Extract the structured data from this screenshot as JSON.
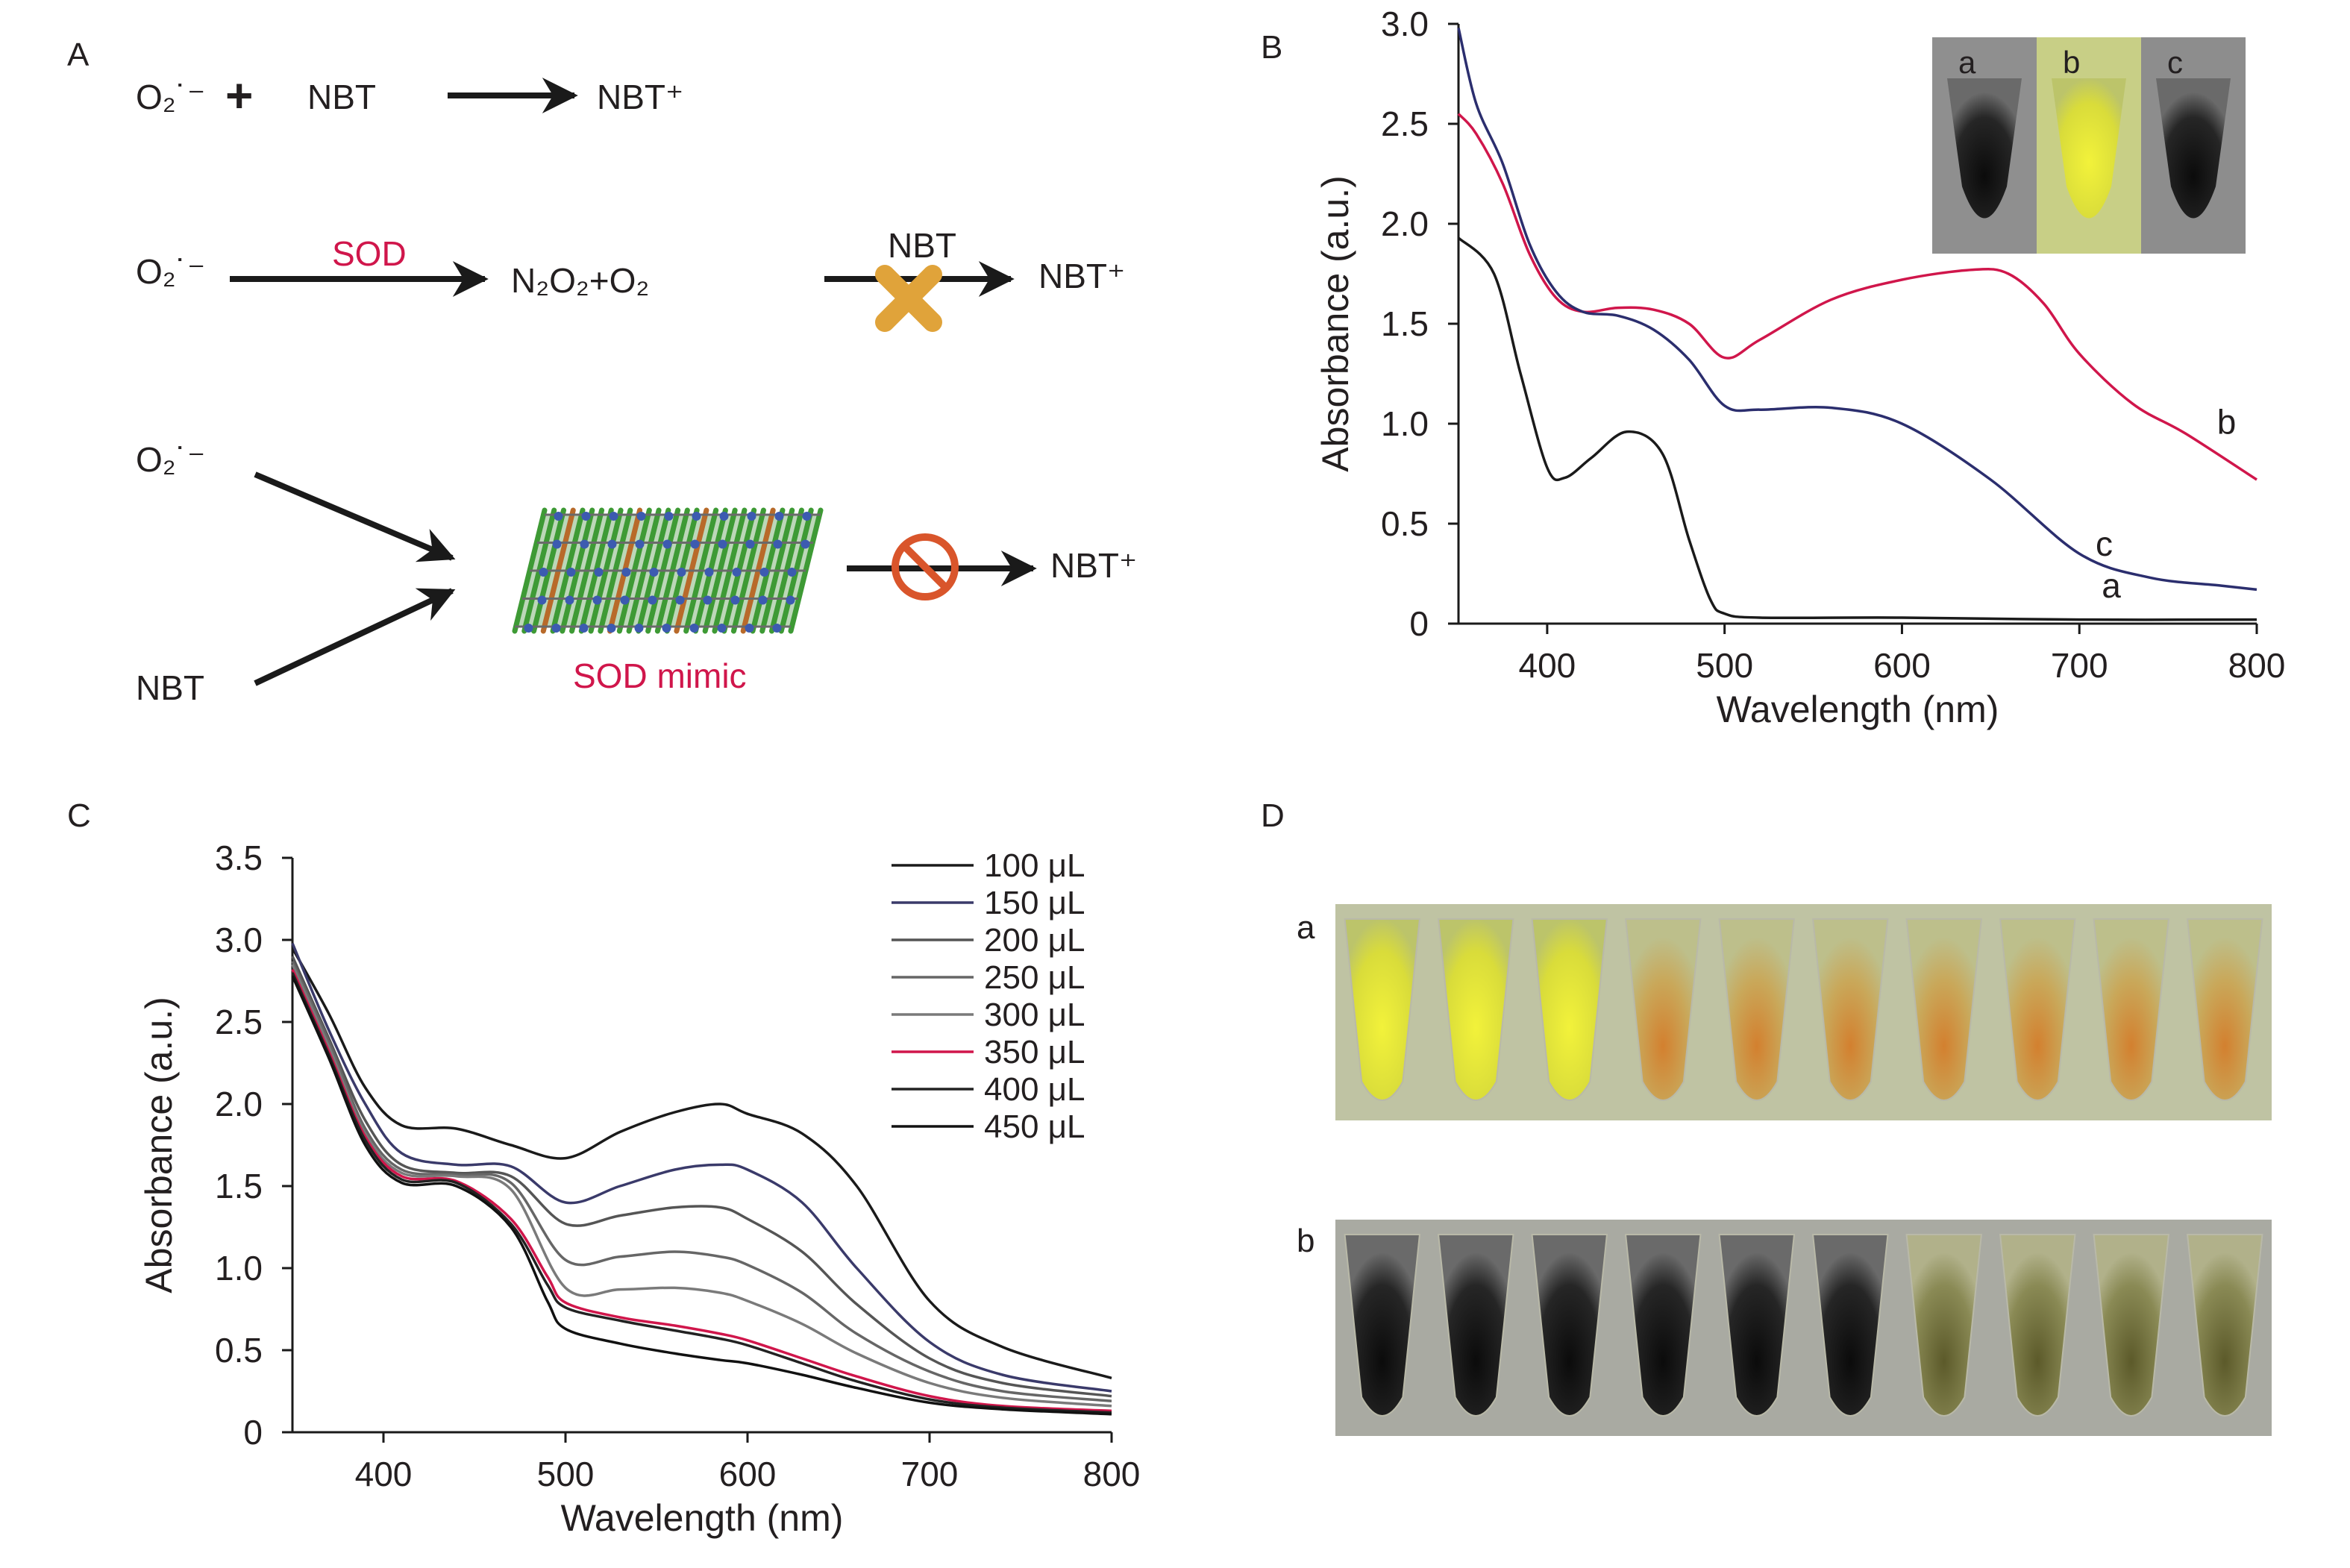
{
  "panel_labels": {
    "A": "A",
    "B": "B",
    "C": "C",
    "D": "D"
  },
  "scheme": {
    "row1": {
      "superoxide": "O₂˙⁻",
      "plus": "+",
      "reagent": "NBT",
      "product": "NBT⁺"
    },
    "row2": {
      "superoxide": "O₂˙⁻",
      "enzyme": "SOD",
      "products": "N₂O₂+O₂",
      "reagent": "NBT",
      "product": "NBT⁺"
    },
    "row3": {
      "superoxide": "O₂˙⁻",
      "reagent": "NBT",
      "mimic": "SOD mimic",
      "product": "NBT⁺"
    },
    "colors": {
      "text": "#231f20",
      "accent": "#d0164b",
      "cross": "#e0a33a",
      "prohibit": "#d9552b"
    }
  },
  "photos": {
    "inset_labels": [
      "a",
      "b",
      "c"
    ],
    "row_labels": [
      "a",
      "b"
    ],
    "tubes_per_row": 10
  },
  "chart_data": [
    {
      "panel": "B",
      "type": "line",
      "xlabel": "Wavelength (nm)",
      "ylabel": "Absorbance (a.u.)",
      "xlim": [
        350,
        800
      ],
      "ylim": [
        0,
        3.0
      ],
      "xticks": [
        400,
        500,
        600,
        700,
        800
      ],
      "yticks": [
        0,
        0.5,
        1.0,
        1.5,
        2.0,
        2.5,
        3.0
      ],
      "ytick_labels": [
        "0",
        "0.5",
        "1.0",
        "1.5",
        "2.0",
        "2.5",
        "3.0"
      ],
      "grid": false,
      "series": [
        {
          "name": "a",
          "color": "#1a1a1a",
          "x": [
            350,
            370,
            385,
            400,
            410,
            425,
            445,
            465,
            480,
            492,
            500,
            520,
            600,
            700,
            800
          ],
          "y": [
            1.93,
            1.75,
            1.25,
            0.78,
            0.73,
            0.83,
            0.96,
            0.85,
            0.42,
            0.12,
            0.05,
            0.03,
            0.03,
            0.02,
            0.02
          ]
        },
        {
          "name": "b",
          "color": "#d0164b",
          "x": [
            350,
            360,
            375,
            390,
            405,
            420,
            440,
            460,
            480,
            500,
            520,
            560,
            600,
            640,
            660,
            680,
            700,
            730,
            760,
            800
          ],
          "y": [
            2.55,
            2.45,
            2.2,
            1.85,
            1.63,
            1.56,
            1.58,
            1.57,
            1.5,
            1.33,
            1.42,
            1.62,
            1.72,
            1.77,
            1.75,
            1.6,
            1.35,
            1.1,
            0.95,
            0.72
          ]
        },
        {
          "name": "c",
          "color": "#2b2e6e",
          "x": [
            350,
            360,
            375,
            390,
            405,
            420,
            440,
            460,
            480,
            500,
            520,
            560,
            600,
            650,
            700,
            740,
            780,
            800
          ],
          "y": [
            2.98,
            2.6,
            2.3,
            1.9,
            1.66,
            1.56,
            1.54,
            1.47,
            1.32,
            1.09,
            1.07,
            1.08,
            1.0,
            0.72,
            0.35,
            0.23,
            0.19,
            0.17
          ]
        }
      ],
      "annotations": [
        {
          "text": "a",
          "x": 718,
          "y": 0.13
        },
        {
          "text": "b",
          "x": 783,
          "y": 0.95
        },
        {
          "text": "c",
          "x": 714,
          "y": 0.34
        }
      ]
    },
    {
      "panel": "C",
      "type": "line",
      "xlabel": "Wavelength (nm)",
      "ylabel": "Absorbance (a.u.)",
      "xlim": [
        350,
        800
      ],
      "ylim": [
        0,
        3.5
      ],
      "xticks": [
        400,
        500,
        600,
        700,
        800
      ],
      "yticks": [
        0,
        0.5,
        1.0,
        1.5,
        2.0,
        2.5,
        3.0,
        3.5
      ],
      "ytick_labels": [
        "0",
        "0.5",
        "1.0",
        "1.5",
        "2.0",
        "2.5",
        "3.0",
        "3.5"
      ],
      "grid": false,
      "legend_position": "top-right",
      "series": [
        {
          "name": "100 μL",
          "color": "#1a1a1a",
          "x": [
            350,
            370,
            390,
            410,
            440,
            470,
            500,
            530,
            560,
            585,
            600,
            630,
            660,
            700,
            740,
            800
          ],
          "y": [
            2.95,
            2.55,
            2.1,
            1.87,
            1.85,
            1.75,
            1.67,
            1.83,
            1.95,
            2.0,
            1.94,
            1.82,
            1.5,
            0.8,
            0.52,
            0.33
          ]
        },
        {
          "name": "150 μL",
          "color": "#3a3a6a",
          "x": [
            350,
            370,
            390,
            410,
            440,
            470,
            500,
            530,
            560,
            585,
            600,
            630,
            660,
            700,
            740,
            800
          ],
          "y": [
            2.98,
            2.45,
            2.0,
            1.7,
            1.63,
            1.62,
            1.4,
            1.5,
            1.6,
            1.63,
            1.6,
            1.4,
            1.0,
            0.55,
            0.35,
            0.25
          ]
        },
        {
          "name": "200 μL",
          "color": "#555555",
          "x": [
            350,
            370,
            390,
            410,
            440,
            470,
            500,
            530,
            560,
            585,
            600,
            630,
            660,
            700,
            740,
            800
          ],
          "y": [
            2.9,
            2.4,
            1.9,
            1.63,
            1.58,
            1.56,
            1.27,
            1.32,
            1.37,
            1.37,
            1.3,
            1.1,
            0.78,
            0.45,
            0.3,
            0.22
          ]
        },
        {
          "name": "250 μL",
          "color": "#666666",
          "x": [
            350,
            370,
            390,
            410,
            440,
            470,
            500,
            530,
            560,
            585,
            600,
            630,
            660,
            700,
            740,
            800
          ],
          "y": [
            2.87,
            2.38,
            1.85,
            1.6,
            1.57,
            1.52,
            1.05,
            1.07,
            1.1,
            1.07,
            1.02,
            0.85,
            0.6,
            0.37,
            0.25,
            0.19
          ]
        },
        {
          "name": "300 μL",
          "color": "#7a7a7a",
          "x": [
            350,
            370,
            390,
            410,
            440,
            470,
            500,
            530,
            560,
            585,
            600,
            630,
            660,
            700,
            740,
            800
          ],
          "y": [
            2.85,
            2.35,
            1.82,
            1.58,
            1.56,
            1.48,
            0.88,
            0.87,
            0.88,
            0.85,
            0.8,
            0.66,
            0.48,
            0.3,
            0.21,
            0.16
          ]
        },
        {
          "name": "350 μL",
          "color": "#d0164b",
          "x": [
            350,
            370,
            390,
            410,
            440,
            470,
            490,
            500,
            530,
            560,
            585,
            600,
            630,
            660,
            700,
            740,
            800
          ],
          "y": [
            2.82,
            2.32,
            1.8,
            1.56,
            1.53,
            1.3,
            0.95,
            0.79,
            0.7,
            0.65,
            0.6,
            0.56,
            0.45,
            0.34,
            0.22,
            0.16,
            0.13
          ]
        },
        {
          "name": "400 μL",
          "color": "#222222",
          "x": [
            350,
            370,
            390,
            410,
            440,
            470,
            490,
            500,
            530,
            560,
            585,
            600,
            630,
            660,
            700,
            740,
            800
          ],
          "y": [
            2.8,
            2.3,
            1.78,
            1.54,
            1.52,
            1.27,
            0.9,
            0.76,
            0.68,
            0.62,
            0.57,
            0.53,
            0.42,
            0.31,
            0.2,
            0.15,
            0.12
          ]
        },
        {
          "name": "450 μL",
          "color": "#111111",
          "x": [
            350,
            370,
            390,
            410,
            440,
            470,
            490,
            500,
            530,
            560,
            585,
            600,
            630,
            660,
            700,
            740,
            800
          ],
          "y": [
            2.78,
            2.28,
            1.75,
            1.52,
            1.5,
            1.25,
            0.8,
            0.63,
            0.54,
            0.48,
            0.44,
            0.42,
            0.35,
            0.27,
            0.18,
            0.14,
            0.11
          ]
        }
      ]
    }
  ]
}
